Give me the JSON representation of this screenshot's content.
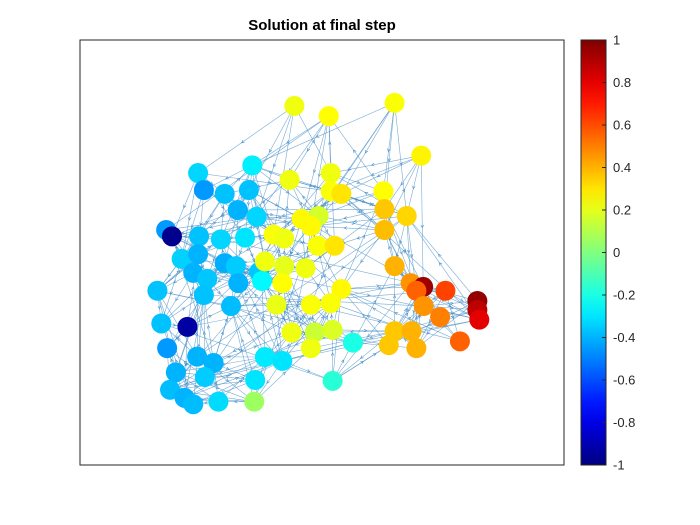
{
  "chart_data": {
    "type": "scatter",
    "subtype": "directed-graph",
    "title": "Solution at final step",
    "xlabel": "",
    "ylabel": "",
    "axes_ticks_visible": false,
    "grid": false,
    "colormap": "jet",
    "colorbar": {
      "range": [
        -1,
        1
      ],
      "ticks": [
        1,
        0.8,
        0.6,
        0.4,
        0.2,
        0,
        -0.2,
        -0.4,
        -0.6,
        -0.8,
        -1
      ],
      "tick_labels": [
        "1",
        "0.8",
        "0.6",
        "0.4",
        "0.2",
        "0",
        "-0.2",
        "-0.4",
        "-0.6",
        "-0.8",
        "-1"
      ]
    },
    "edge_color": "#4a90c8",
    "xlim": [
      0,
      100
    ],
    "ylim": [
      0,
      100
    ],
    "nodes": [
      {
        "x": 44.3,
        "y": 84.5,
        "value": 0.22
      },
      {
        "x": 51.4,
        "y": 82.1,
        "value": 0.25
      },
      {
        "x": 65.0,
        "y": 85.2,
        "value": 0.24
      },
      {
        "x": 70.5,
        "y": 72.8,
        "value": 0.27
      },
      {
        "x": 35.6,
        "y": 70.5,
        "value": -0.28
      },
      {
        "x": 24.4,
        "y": 68.7,
        "value": -0.33
      },
      {
        "x": 43.3,
        "y": 67.1,
        "value": 0.22
      },
      {
        "x": 51.8,
        "y": 68.7,
        "value": 0.22
      },
      {
        "x": 25.6,
        "y": 64.7,
        "value": -0.45
      },
      {
        "x": 29.9,
        "y": 63.8,
        "value": -0.37
      },
      {
        "x": 34.9,
        "y": 64.7,
        "value": -0.37
      },
      {
        "x": 51.8,
        "y": 64.4,
        "value": 0.24
      },
      {
        "x": 54.0,
        "y": 63.8,
        "value": 0.3
      },
      {
        "x": 62.7,
        "y": 64.4,
        "value": 0.25
      },
      {
        "x": 62.9,
        "y": 60.2,
        "value": 0.36
      },
      {
        "x": 32.6,
        "y": 60.0,
        "value": -0.4
      },
      {
        "x": 36.5,
        "y": 58.4,
        "value": -0.33
      },
      {
        "x": 45.8,
        "y": 57.9,
        "value": 0.26
      },
      {
        "x": 49.3,
        "y": 58.6,
        "value": 0.17
      },
      {
        "x": 47.7,
        "y": 56.2,
        "value": 0.26
      },
      {
        "x": 67.5,
        "y": 58.6,
        "value": 0.33
      },
      {
        "x": 17.8,
        "y": 55.3,
        "value": -0.45
      },
      {
        "x": 19.0,
        "y": 53.8,
        "value": -0.97
      },
      {
        "x": 24.6,
        "y": 53.8,
        "value": -0.37
      },
      {
        "x": 29.1,
        "y": 53.1,
        "value": -0.33
      },
      {
        "x": 34.1,
        "y": 53.5,
        "value": -0.3
      },
      {
        "x": 40.0,
        "y": 54.2,
        "value": 0.24
      },
      {
        "x": 42.2,
        "y": 53.3,
        "value": 0.22
      },
      {
        "x": 49.1,
        "y": 51.6,
        "value": 0.24
      },
      {
        "x": 52.6,
        "y": 51.6,
        "value": 0.3
      },
      {
        "x": 62.9,
        "y": 55.3,
        "value": 0.38
      },
      {
        "x": 21.0,
        "y": 48.5,
        "value": -0.34
      },
      {
        "x": 24.4,
        "y": 49.6,
        "value": -0.4
      },
      {
        "x": 29.9,
        "y": 47.5,
        "value": -0.41
      },
      {
        "x": 32.2,
        "y": 46.8,
        "value": -0.35
      },
      {
        "x": 37.0,
        "y": 45.4,
        "value": -0.36
      },
      {
        "x": 38.2,
        "y": 47.9,
        "value": 0.22
      },
      {
        "x": 42.2,
        "y": 46.8,
        "value": 0.2
      },
      {
        "x": 46.6,
        "y": 46.3,
        "value": 0.22
      },
      {
        "x": 23.4,
        "y": 45.2,
        "value": -0.4
      },
      {
        "x": 26.3,
        "y": 43.8,
        "value": -0.36
      },
      {
        "x": 32.7,
        "y": 42.8,
        "value": -0.4
      },
      {
        "x": 37.6,
        "y": 43.3,
        "value": -0.26
      },
      {
        "x": 41.8,
        "y": 42.8,
        "value": 0.25
      },
      {
        "x": 54.0,
        "y": 41.4,
        "value": 0.26
      },
      {
        "x": 65.0,
        "y": 46.8,
        "value": 0.4
      },
      {
        "x": 68.3,
        "y": 42.8,
        "value": 0.46
      },
      {
        "x": 70.9,
        "y": 41.9,
        "value": 0.94
      },
      {
        "x": 69.5,
        "y": 41.0,
        "value": 0.56
      },
      {
        "x": 75.5,
        "y": 41.0,
        "value": 0.62
      },
      {
        "x": 16.0,
        "y": 41.0,
        "value": -0.37
      },
      {
        "x": 25.6,
        "y": 40.0,
        "value": -0.37
      },
      {
        "x": 31.2,
        "y": 37.4,
        "value": -0.38
      },
      {
        "x": 40.6,
        "y": 37.7,
        "value": 0.21
      },
      {
        "x": 47.7,
        "y": 37.7,
        "value": 0.24
      },
      {
        "x": 51.8,
        "y": 38.1,
        "value": 0.24
      },
      {
        "x": 71.0,
        "y": 37.4,
        "value": 0.46
      },
      {
        "x": 74.4,
        "y": 34.8,
        "value": 0.5
      },
      {
        "x": 82.1,
        "y": 38.6,
        "value": 0.96
      },
      {
        "x": 82.1,
        "y": 36.5,
        "value": 0.88
      },
      {
        "x": 82.5,
        "y": 34.2,
        "value": 0.8
      },
      {
        "x": 16.8,
        "y": 33.3,
        "value": -0.37
      },
      {
        "x": 22.2,
        "y": 32.5,
        "value": -0.93
      },
      {
        "x": 43.7,
        "y": 31.2,
        "value": 0.22
      },
      {
        "x": 48.5,
        "y": 31.2,
        "value": 0.15
      },
      {
        "x": 52.2,
        "y": 31.8,
        "value": 0.18
      },
      {
        "x": 65.0,
        "y": 31.5,
        "value": 0.36
      },
      {
        "x": 68.5,
        "y": 31.5,
        "value": 0.4
      },
      {
        "x": 78.5,
        "y": 29.1,
        "value": 0.56
      },
      {
        "x": 18.0,
        "y": 27.5,
        "value": -0.45
      },
      {
        "x": 24.2,
        "y": 25.5,
        "value": -0.4
      },
      {
        "x": 27.6,
        "y": 24.0,
        "value": -0.4
      },
      {
        "x": 38.2,
        "y": 25.4,
        "value": -0.29
      },
      {
        "x": 41.8,
        "y": 24.5,
        "value": -0.3
      },
      {
        "x": 47.7,
        "y": 27.5,
        "value": 0.22
      },
      {
        "x": 56.4,
        "y": 28.8,
        "value": -0.2
      },
      {
        "x": 63.8,
        "y": 28.2,
        "value": 0.36
      },
      {
        "x": 69.5,
        "y": 27.5,
        "value": 0.4
      },
      {
        "x": 19.8,
        "y": 21.8,
        "value": -0.4
      },
      {
        "x": 25.8,
        "y": 20.7,
        "value": -0.35
      },
      {
        "x": 36.2,
        "y": 20.0,
        "value": -0.3
      },
      {
        "x": 52.2,
        "y": 19.8,
        "value": -0.17
      },
      {
        "x": 18.6,
        "y": 17.7,
        "value": -0.38
      },
      {
        "x": 21.6,
        "y": 15.8,
        "value": -0.4
      },
      {
        "x": 23.4,
        "y": 14.3,
        "value": -0.38
      },
      {
        "x": 28.6,
        "y": 14.9,
        "value": -0.32
      },
      {
        "x": 36.0,
        "y": 14.9,
        "value": 0.06
      }
    ],
    "edges_description_note": ""
  }
}
